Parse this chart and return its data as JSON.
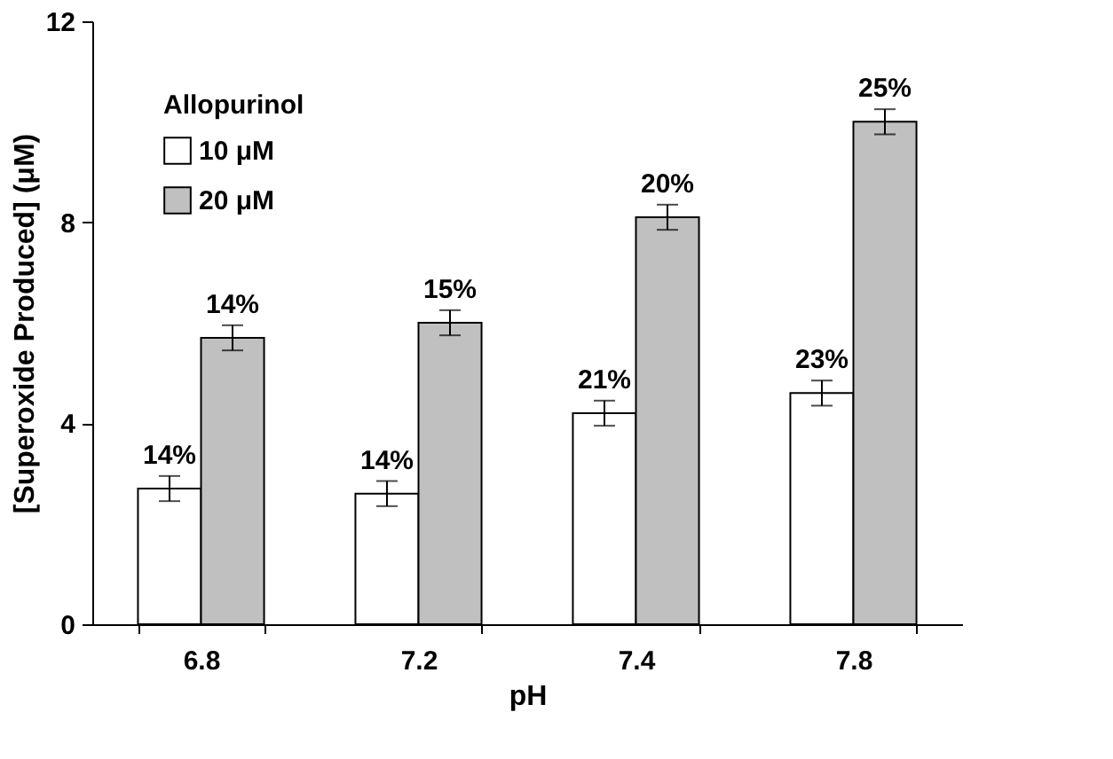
{
  "chart_data": {
    "type": "bar",
    "xlabel": "pH",
    "ylabel": "[Superoxide Produced] (μM)",
    "legend_title": "Allopurinol",
    "categories": [
      "6.8",
      "7.2",
      "7.4",
      "7.8"
    ],
    "series": [
      {
        "name": "10 μM",
        "color": "#ffffff",
        "values": [
          2.7,
          2.6,
          4.2,
          4.6
        ],
        "errors": [
          0.25,
          0.25,
          0.25,
          0.25
        ]
      },
      {
        "name": "20 μM",
        "color": "#c0c0c0",
        "values": [
          5.7,
          6.0,
          8.1,
          10.0
        ],
        "errors": [
          0.25,
          0.25,
          0.25,
          0.25
        ]
      }
    ],
    "annotations": [
      {
        "text": "14%",
        "x": "6.8",
        "y": 2.7
      },
      {
        "text": "14%",
        "x": "6.8",
        "y": 5.7
      },
      {
        "text": "14%",
        "x": "7.2",
        "y": 2.6
      },
      {
        "text": "15%",
        "x": "7.2",
        "y": 6.0
      },
      {
        "text": "21%",
        "x": "7.4",
        "y": 4.2
      },
      {
        "text": "20%",
        "x": "7.4",
        "y": 8.1
      },
      {
        "text": "23%",
        "x": "7.8",
        "y": 4.6
      },
      {
        "text": "25%",
        "x": "7.8",
        "y": 10.0
      }
    ],
    "ylim": [
      0,
      12
    ],
    "yticks": [
      0,
      4,
      8,
      12
    ],
    "grid": false,
    "legend": "top left"
  }
}
